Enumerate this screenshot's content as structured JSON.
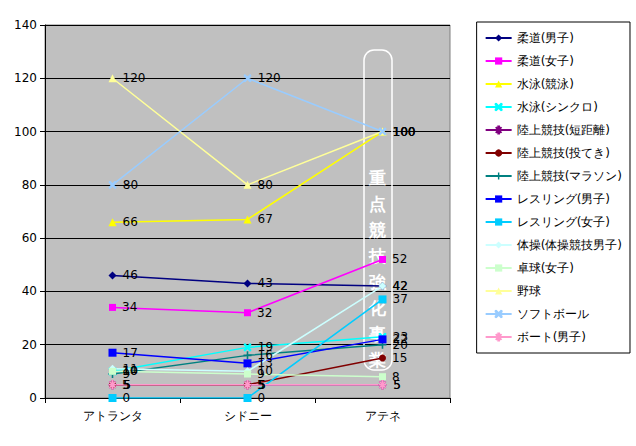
{
  "chart_data": {
    "type": "line",
    "annotation": "重点競技強化事業",
    "categories": [
      "アトランタ",
      "シドニー",
      "アテネ"
    ],
    "ylim": [
      0,
      140
    ],
    "yticks": [
      0,
      20,
      40,
      60,
      80,
      100,
      120,
      140
    ],
    "grid": true,
    "legend": "right",
    "data_labels": true,
    "series": [
      {
        "name": "柔道(男子)",
        "color": "#000080",
        "marker": "diamond",
        "values": [
          46,
          43,
          42
        ]
      },
      {
        "name": "柔道(女子)",
        "color": "#ff00ff",
        "marker": "square",
        "values": [
          34,
          32,
          52
        ]
      },
      {
        "name": "水泳(競泳)",
        "color": "#ffff00",
        "marker": "triangle",
        "values": [
          66,
          67,
          100
        ]
      },
      {
        "name": "水泳(シンクロ)",
        "color": "#00ffff",
        "marker": "x",
        "values": [
          10,
          19,
          23
        ]
      },
      {
        "name": "陸上競技(短距離)",
        "color": "#800080",
        "marker": "star",
        "values": [
          5,
          5,
          5
        ]
      },
      {
        "name": "陸上競技(投てき)",
        "color": "#800000",
        "marker": "circle",
        "values": [
          5,
          5,
          15
        ]
      },
      {
        "name": "陸上競技(マラソン)",
        "color": "#008080",
        "marker": "plus",
        "values": [
          9,
          16,
          20
        ]
      },
      {
        "name": "レスリング(男子)",
        "color": "#0000ff",
        "marker": "dash",
        "values": [
          17,
          13,
          22
        ]
      },
      {
        "name": "レスリング(女子)",
        "color": "#00ccff",
        "marker": "dash",
        "values": [
          0,
          0,
          37
        ]
      },
      {
        "name": "体操(体操競技男子)",
        "color": "#ccffff",
        "marker": "diamond",
        "values": [
          11,
          10,
          42
        ]
      },
      {
        "name": "卓球(女子)",
        "color": "#ccffcc",
        "marker": "square",
        "values": [
          10,
          9,
          8
        ]
      },
      {
        "name": "野球",
        "color": "#ffff99",
        "marker": "triangle",
        "values": [
          120,
          80,
          100
        ]
      },
      {
        "name": "ソフトボール",
        "color": "#99ccff",
        "marker": "x",
        "values": [
          80,
          120,
          100
        ]
      },
      {
        "name": "ボート(男子)",
        "color": "#ff99cc",
        "marker": "star",
        "values": [
          5,
          5,
          5
        ]
      }
    ]
  }
}
